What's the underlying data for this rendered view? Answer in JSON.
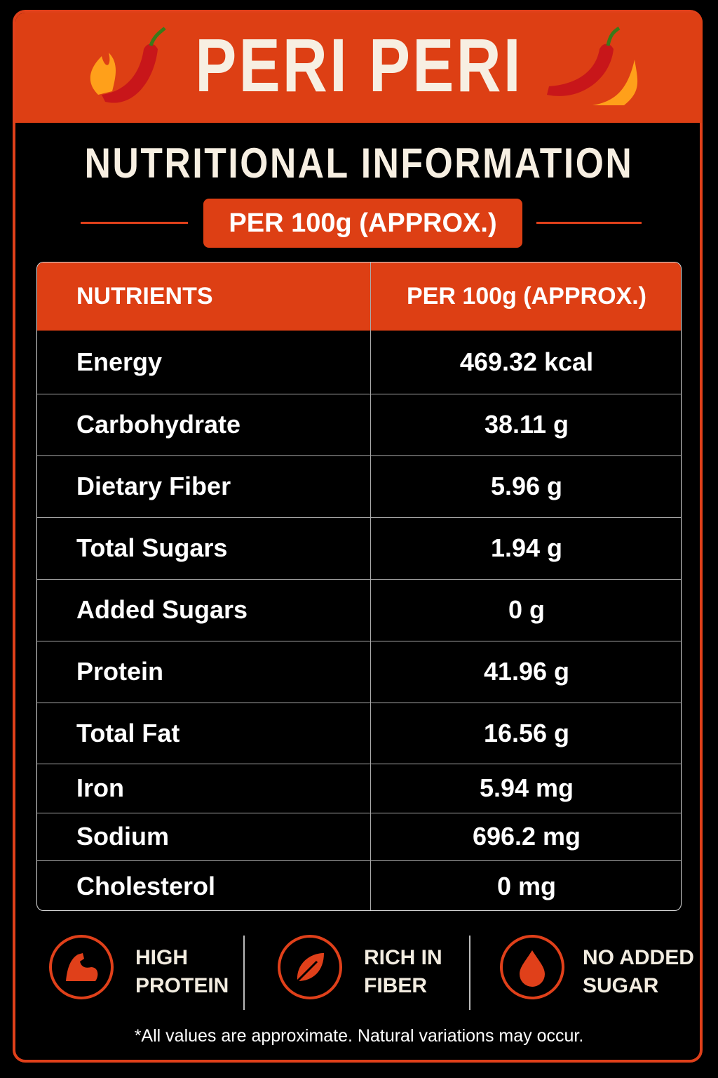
{
  "header": {
    "title": "PERI PERI",
    "subtitle": "NUTRITIONAL INFORMATION",
    "badge": "PER 100g (APPROX.)"
  },
  "table": {
    "columns": [
      "NUTRIENTS",
      "PER 100g (APPROX.)"
    ],
    "rows": [
      [
        "Energy",
        "469.32 kcal"
      ],
      [
        "Carbohydrate",
        "38.11 g"
      ],
      [
        "Dietary Fiber",
        "5.96 g"
      ],
      [
        "Total Sugars",
        "1.94 g"
      ],
      [
        "Added Sugars",
        "0 g"
      ],
      [
        "Protein",
        "41.96 g"
      ],
      [
        "Total Fat",
        "16.56 g"
      ],
      [
        "Iron",
        "5.94 mg"
      ],
      [
        "Sodium",
        "696.2 mg"
      ],
      [
        "Cholesterol",
        "0 mg"
      ]
    ]
  },
  "features": [
    {
      "lines": [
        "HIGH",
        "PROTEIN"
      ]
    },
    {
      "lines": [
        "RICH IN",
        "FIBER"
      ]
    },
    {
      "lines": [
        "NO ADDED",
        "SUGAR"
      ]
    }
  ],
  "footnote": "*All values are approximate. Natural variations may occur."
}
